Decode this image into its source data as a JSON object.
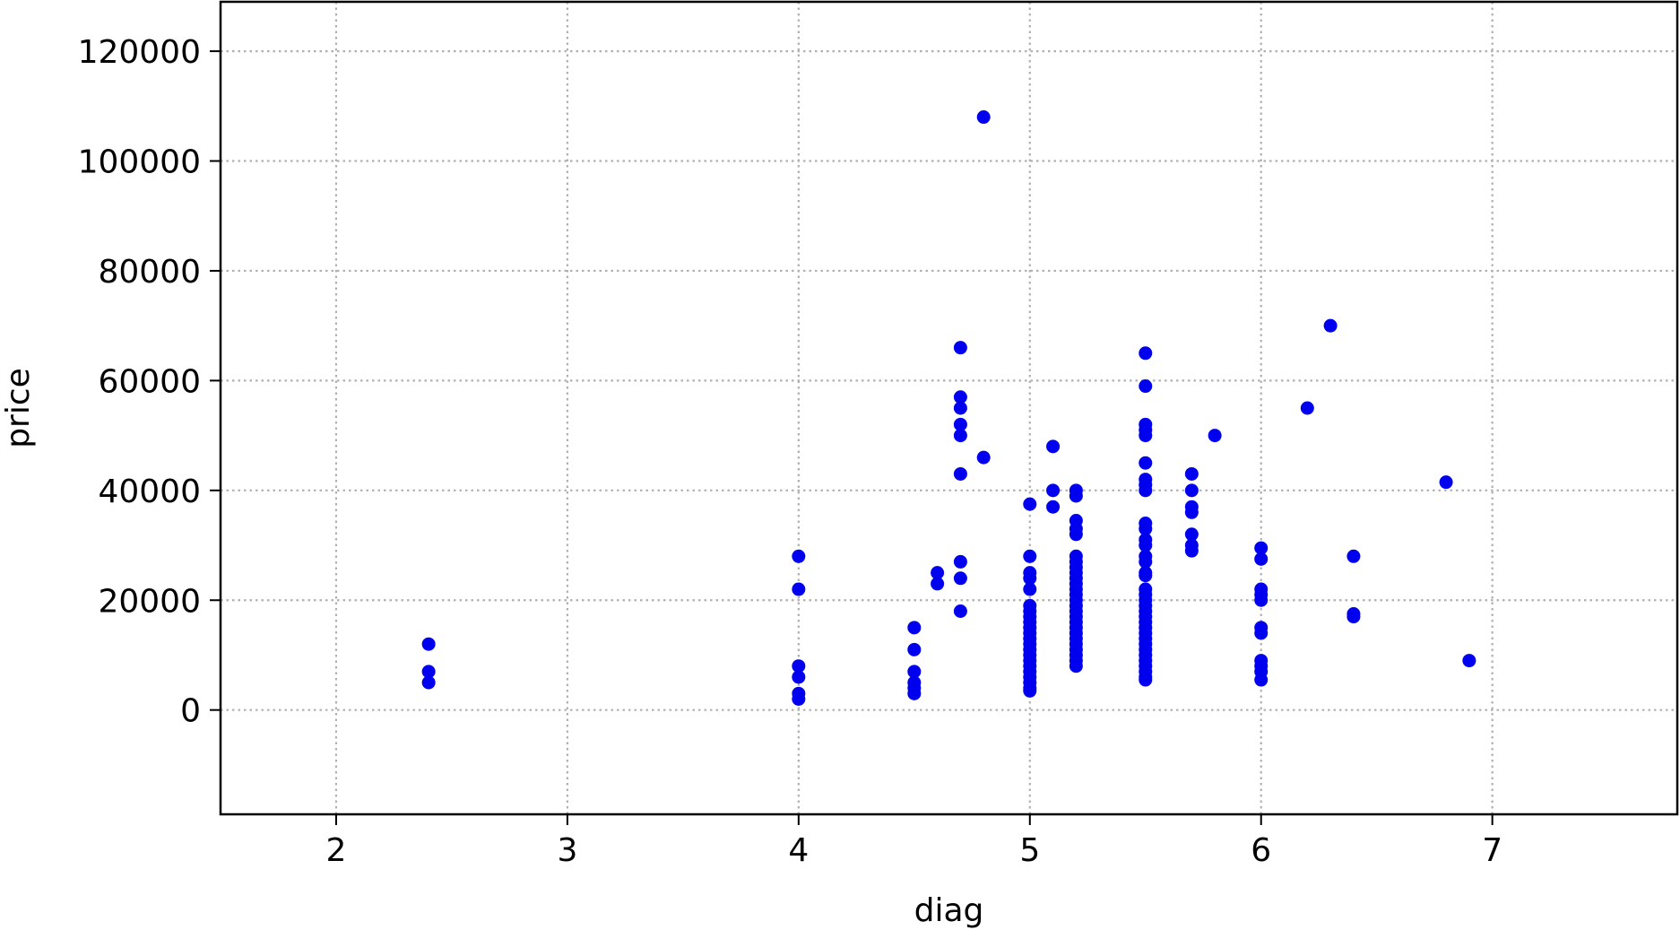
{
  "chart_data": {
    "type": "scatter",
    "xlabel": "diag",
    "ylabel": "price",
    "xlim": [
      1.5,
      7.8
    ],
    "ylim": [
      -19000,
      129000
    ],
    "xticks": [
      2,
      3,
      4,
      5,
      6,
      7
    ],
    "yticks": [
      0,
      20000,
      40000,
      60000,
      80000,
      100000,
      120000
    ],
    "xtick_labels": [
      "2",
      "3",
      "4",
      "5",
      "6",
      "7"
    ],
    "ytick_labels": [
      "0",
      "20000",
      "40000",
      "60000",
      "80000",
      "100000",
      "120000"
    ],
    "grid": true,
    "grid_style": "dotted",
    "marker_color": "#0000ee",
    "points": [
      {
        "x": 2.4,
        "y": 12000
      },
      {
        "x": 2.4,
        "y": 7000
      },
      {
        "x": 2.4,
        "y": 5000
      },
      {
        "x": 4.0,
        "y": 28000
      },
      {
        "x": 4.0,
        "y": 22000
      },
      {
        "x": 4.0,
        "y": 8000
      },
      {
        "x": 4.0,
        "y": 6000
      },
      {
        "x": 4.0,
        "y": 3000
      },
      {
        "x": 4.0,
        "y": 2000
      },
      {
        "x": 4.5,
        "y": 15000
      },
      {
        "x": 4.5,
        "y": 11000
      },
      {
        "x": 4.5,
        "y": 7000
      },
      {
        "x": 4.5,
        "y": 5000
      },
      {
        "x": 4.5,
        "y": 4000
      },
      {
        "x": 4.5,
        "y": 3000
      },
      {
        "x": 4.6,
        "y": 25000
      },
      {
        "x": 4.6,
        "y": 23000
      },
      {
        "x": 4.7,
        "y": 66000
      },
      {
        "x": 4.7,
        "y": 57000
      },
      {
        "x": 4.7,
        "y": 55000
      },
      {
        "x": 4.7,
        "y": 52000
      },
      {
        "x": 4.7,
        "y": 50000
      },
      {
        "x": 4.7,
        "y": 43000
      },
      {
        "x": 4.7,
        "y": 27000
      },
      {
        "x": 4.7,
        "y": 24000
      },
      {
        "x": 4.7,
        "y": 18000
      },
      {
        "x": 4.8,
        "y": 108000
      },
      {
        "x": 4.8,
        "y": 46000
      },
      {
        "x": 5.0,
        "y": 37500
      },
      {
        "x": 5.0,
        "y": 28000
      },
      {
        "x": 5.0,
        "y": 25000
      },
      {
        "x": 5.0,
        "y": 24000
      },
      {
        "x": 5.0,
        "y": 22000
      },
      {
        "x": 5.0,
        "y": 19000
      },
      {
        "x": 5.0,
        "y": 18000
      },
      {
        "x": 5.0,
        "y": 17000
      },
      {
        "x": 5.0,
        "y": 16000
      },
      {
        "x": 5.0,
        "y": 15000
      },
      {
        "x": 5.0,
        "y": 14000
      },
      {
        "x": 5.0,
        "y": 13000
      },
      {
        "x": 5.0,
        "y": 12000
      },
      {
        "x": 5.0,
        "y": 11000
      },
      {
        "x": 5.0,
        "y": 10000
      },
      {
        "x": 5.0,
        "y": 9000
      },
      {
        "x": 5.0,
        "y": 8000
      },
      {
        "x": 5.0,
        "y": 7000
      },
      {
        "x": 5.0,
        "y": 6000
      },
      {
        "x": 5.0,
        "y": 5000
      },
      {
        "x": 5.0,
        "y": 4000
      },
      {
        "x": 5.0,
        "y": 3500
      },
      {
        "x": 5.1,
        "y": 48000
      },
      {
        "x": 5.1,
        "y": 40000
      },
      {
        "x": 5.1,
        "y": 37000
      },
      {
        "x": 5.2,
        "y": 40000
      },
      {
        "x": 5.2,
        "y": 39000
      },
      {
        "x": 5.2,
        "y": 34500
      },
      {
        "x": 5.2,
        "y": 33000
      },
      {
        "x": 5.2,
        "y": 32000
      },
      {
        "x": 5.2,
        "y": 28000
      },
      {
        "x": 5.2,
        "y": 27000
      },
      {
        "x": 5.2,
        "y": 26000
      },
      {
        "x": 5.2,
        "y": 25000
      },
      {
        "x": 5.2,
        "y": 24000
      },
      {
        "x": 5.2,
        "y": 23000
      },
      {
        "x": 5.2,
        "y": 22000
      },
      {
        "x": 5.2,
        "y": 21000
      },
      {
        "x": 5.2,
        "y": 20000
      },
      {
        "x": 5.2,
        "y": 19000
      },
      {
        "x": 5.2,
        "y": 18000
      },
      {
        "x": 5.2,
        "y": 17000
      },
      {
        "x": 5.2,
        "y": 16000
      },
      {
        "x": 5.2,
        "y": 15000
      },
      {
        "x": 5.2,
        "y": 14000
      },
      {
        "x": 5.2,
        "y": 13000
      },
      {
        "x": 5.2,
        "y": 12000
      },
      {
        "x": 5.2,
        "y": 11000
      },
      {
        "x": 5.2,
        "y": 10000
      },
      {
        "x": 5.2,
        "y": 9000
      },
      {
        "x": 5.2,
        "y": 8000
      },
      {
        "x": 5.5,
        "y": 65000
      },
      {
        "x": 5.5,
        "y": 59000
      },
      {
        "x": 5.5,
        "y": 52000
      },
      {
        "x": 5.5,
        "y": 51000
      },
      {
        "x": 5.5,
        "y": 50000
      },
      {
        "x": 5.5,
        "y": 45000
      },
      {
        "x": 5.5,
        "y": 42000
      },
      {
        "x": 5.5,
        "y": 41000
      },
      {
        "x": 5.5,
        "y": 40000
      },
      {
        "x": 5.5,
        "y": 34000
      },
      {
        "x": 5.5,
        "y": 33000
      },
      {
        "x": 5.5,
        "y": 31000
      },
      {
        "x": 5.5,
        "y": 30000
      },
      {
        "x": 5.5,
        "y": 28000
      },
      {
        "x": 5.5,
        "y": 27000
      },
      {
        "x": 5.5,
        "y": 25000
      },
      {
        "x": 5.5,
        "y": 24500
      },
      {
        "x": 5.5,
        "y": 22000
      },
      {
        "x": 5.5,
        "y": 21000
      },
      {
        "x": 5.5,
        "y": 20000
      },
      {
        "x": 5.5,
        "y": 19000
      },
      {
        "x": 5.5,
        "y": 18000
      },
      {
        "x": 5.5,
        "y": 17000
      },
      {
        "x": 5.5,
        "y": 16000
      },
      {
        "x": 5.5,
        "y": 15000
      },
      {
        "x": 5.5,
        "y": 14000
      },
      {
        "x": 5.5,
        "y": 13000
      },
      {
        "x": 5.5,
        "y": 12000
      },
      {
        "x": 5.5,
        "y": 11000
      },
      {
        "x": 5.5,
        "y": 10000
      },
      {
        "x": 5.5,
        "y": 9000
      },
      {
        "x": 5.5,
        "y": 8000
      },
      {
        "x": 5.5,
        "y": 7000
      },
      {
        "x": 5.5,
        "y": 6000
      },
      {
        "x": 5.5,
        "y": 5500
      },
      {
        "x": 5.7,
        "y": 43000
      },
      {
        "x": 5.7,
        "y": 40000
      },
      {
        "x": 5.7,
        "y": 37000
      },
      {
        "x": 5.7,
        "y": 36000
      },
      {
        "x": 5.7,
        "y": 32000
      },
      {
        "x": 5.7,
        "y": 30000
      },
      {
        "x": 5.7,
        "y": 29000
      },
      {
        "x": 5.8,
        "y": 50000
      },
      {
        "x": 6.0,
        "y": 29500
      },
      {
        "x": 6.0,
        "y": 27500
      },
      {
        "x": 6.0,
        "y": 22000
      },
      {
        "x": 6.0,
        "y": 21000
      },
      {
        "x": 6.0,
        "y": 20000
      },
      {
        "x": 6.0,
        "y": 15000
      },
      {
        "x": 6.0,
        "y": 14000
      },
      {
        "x": 6.0,
        "y": 9000
      },
      {
        "x": 6.0,
        "y": 8000
      },
      {
        "x": 6.0,
        "y": 7000
      },
      {
        "x": 6.0,
        "y": 5500
      },
      {
        "x": 6.2,
        "y": 55000
      },
      {
        "x": 6.3,
        "y": 70000
      },
      {
        "x": 6.4,
        "y": 28000
      },
      {
        "x": 6.4,
        "y": 17500
      },
      {
        "x": 6.4,
        "y": 17000
      },
      {
        "x": 6.8,
        "y": 41500
      },
      {
        "x": 6.9,
        "y": 9000
      }
    ]
  }
}
